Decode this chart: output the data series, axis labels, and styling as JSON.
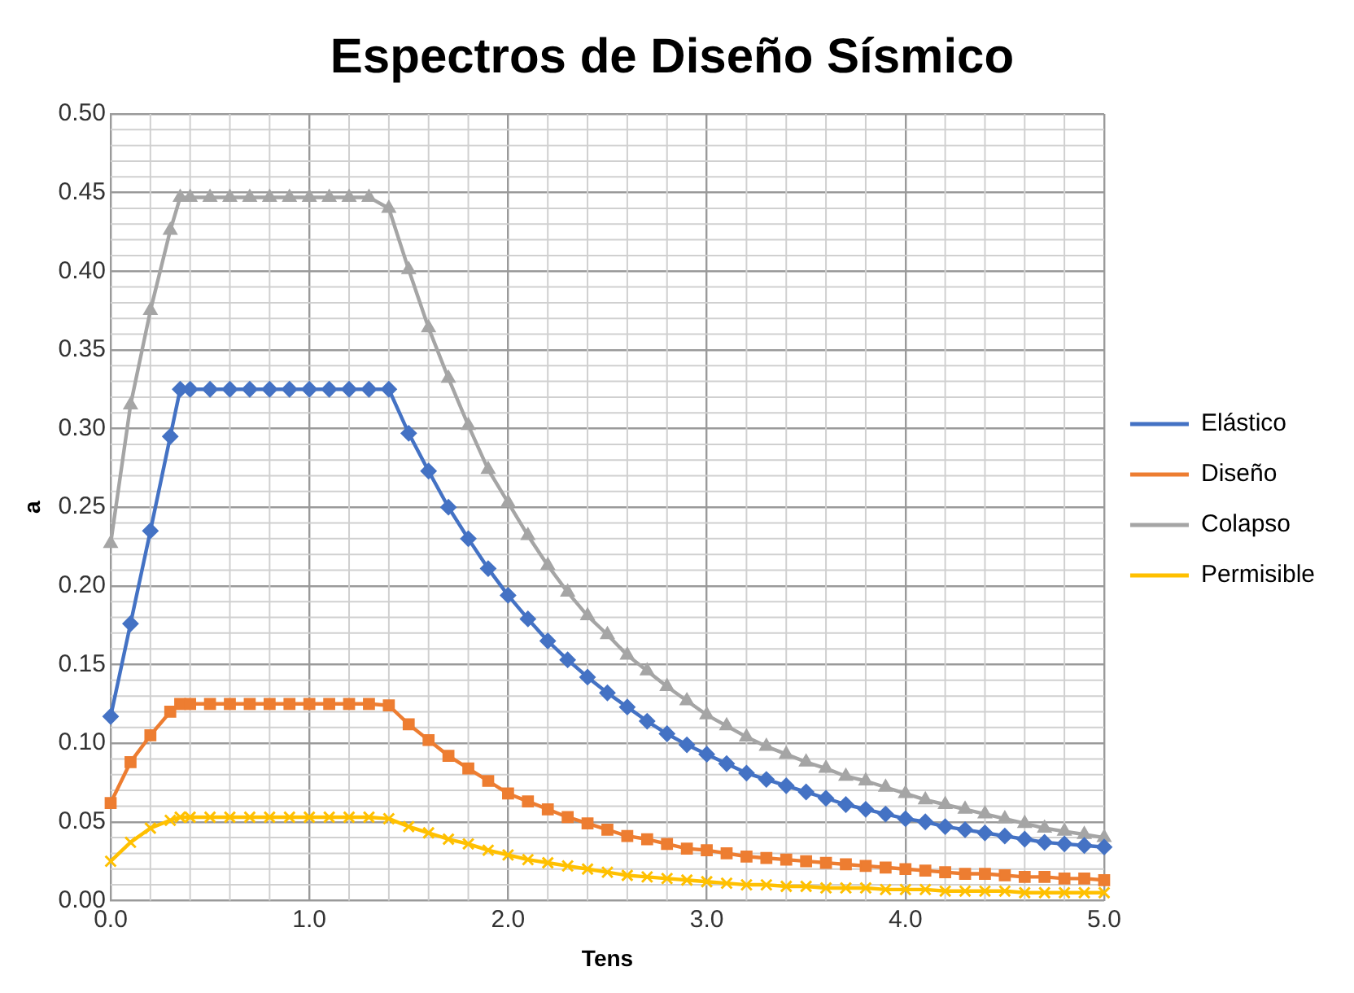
{
  "chart_data": {
    "type": "line",
    "title": "Espectros de Diseño Sísmico",
    "xlabel": "Tens",
    "ylabel": "a",
    "x": [
      0,
      0.1,
      0.2,
      0.3,
      0.35,
      0.4,
      0.5,
      0.6,
      0.7,
      0.8,
      0.9,
      1.0,
      1.1,
      1.2,
      1.3,
      1.4,
      1.5,
      1.6,
      1.7,
      1.8,
      1.9,
      2.0,
      2.1,
      2.2,
      2.3,
      2.4,
      2.5,
      2.6,
      2.7,
      2.8,
      2.9,
      3.0,
      3.1,
      3.2,
      3.3,
      3.4,
      3.5,
      3.6,
      3.7,
      3.8,
      3.9,
      4.0,
      4.1,
      4.2,
      4.3,
      4.4,
      4.5,
      4.6,
      4.7,
      4.8,
      4.9,
      5.0
    ],
    "series": [
      {
        "name": "Elástico",
        "color": "#4472c4",
        "marker": "diamond",
        "values": [
          0.117,
          0.176,
          0.235,
          0.295,
          0.325,
          0.325,
          0.325,
          0.325,
          0.325,
          0.325,
          0.325,
          0.325,
          0.325,
          0.325,
          0.325,
          0.325,
          0.297,
          0.273,
          0.25,
          0.23,
          0.211,
          0.194,
          0.179,
          0.165,
          0.153,
          0.142,
          0.132,
          0.123,
          0.114,
          0.106,
          0.099,
          0.093,
          0.087,
          0.081,
          0.077,
          0.073,
          0.069,
          0.065,
          0.061,
          0.058,
          0.055,
          0.052,
          0.05,
          0.047,
          0.045,
          0.043,
          0.041,
          0.039,
          0.037,
          0.036,
          0.035,
          0.034
        ]
      },
      {
        "name": "Diseño",
        "color": "#ed7d31",
        "marker": "square",
        "values": [
          0.062,
          0.088,
          0.105,
          0.12,
          0.125,
          0.125,
          0.125,
          0.125,
          0.125,
          0.125,
          0.125,
          0.125,
          0.125,
          0.125,
          0.125,
          0.124,
          0.112,
          0.102,
          0.092,
          0.084,
          0.076,
          0.068,
          0.063,
          0.058,
          0.053,
          0.049,
          0.045,
          0.041,
          0.039,
          0.036,
          0.033,
          0.032,
          0.03,
          0.028,
          0.027,
          0.026,
          0.025,
          0.024,
          0.023,
          0.022,
          0.021,
          0.02,
          0.019,
          0.018,
          0.017,
          0.017,
          0.016,
          0.015,
          0.015,
          0.014,
          0.014,
          0.013
        ]
      },
      {
        "name": "Colapso",
        "color": "#a5a5a5",
        "marker": "triangle",
        "values": [
          0.227,
          0.315,
          0.375,
          0.426,
          0.447,
          0.447,
          0.447,
          0.447,
          0.447,
          0.447,
          0.447,
          0.447,
          0.447,
          0.447,
          0.447,
          0.44,
          0.401,
          0.364,
          0.332,
          0.302,
          0.274,
          0.253,
          0.232,
          0.213,
          0.196,
          0.181,
          0.169,
          0.156,
          0.146,
          0.136,
          0.127,
          0.118,
          0.111,
          0.104,
          0.098,
          0.093,
          0.088,
          0.084,
          0.079,
          0.076,
          0.072,
          0.068,
          0.064,
          0.061,
          0.058,
          0.055,
          0.052,
          0.049,
          0.046,
          0.044,
          0.042,
          0.04
        ]
      },
      {
        "name": "Permisible",
        "color": "#ffc000",
        "marker": "cross",
        "values": [
          0.025,
          0.037,
          0.046,
          0.051,
          0.053,
          0.053,
          0.053,
          0.053,
          0.053,
          0.053,
          0.053,
          0.053,
          0.053,
          0.053,
          0.053,
          0.052,
          0.047,
          0.043,
          0.039,
          0.036,
          0.032,
          0.029,
          0.026,
          0.024,
          0.022,
          0.02,
          0.018,
          0.016,
          0.015,
          0.014,
          0.013,
          0.012,
          0.011,
          0.01,
          0.01,
          0.009,
          0.009,
          0.008,
          0.008,
          0.008,
          0.007,
          0.007,
          0.007,
          0.006,
          0.006,
          0.006,
          0.006,
          0.005,
          0.005,
          0.005,
          0.005,
          0.005
        ]
      }
    ],
    "xlim": [
      0,
      5
    ],
    "xticks": [
      {
        "value": 0,
        "label": "0.0"
      },
      {
        "value": 1,
        "label": "1.0"
      },
      {
        "value": 2,
        "label": "2.0"
      },
      {
        "value": 3,
        "label": "3.0"
      },
      {
        "value": 4,
        "label": "4.0"
      },
      {
        "value": 5,
        "label": "5.0"
      }
    ],
    "ylim": [
      0,
      0.5
    ],
    "yticks": [
      {
        "value": 0,
        "label": "0.00"
      },
      {
        "value": 0.05,
        "label": "0.05"
      },
      {
        "value": 0.1,
        "label": "0.10"
      },
      {
        "value": 0.15,
        "label": "0.15"
      },
      {
        "value": 0.2,
        "label": "0.20"
      },
      {
        "value": 0.25,
        "label": "0.25"
      },
      {
        "value": 0.3,
        "label": "0.30"
      },
      {
        "value": 0.35,
        "label": "0.35"
      },
      {
        "value": 0.4,
        "label": "0.40"
      },
      {
        "value": 0.45,
        "label": "0.45"
      },
      {
        "value": 0.5,
        "label": "0.50"
      }
    ],
    "grid": true,
    "legend": "right",
    "line_style": "solid"
  }
}
